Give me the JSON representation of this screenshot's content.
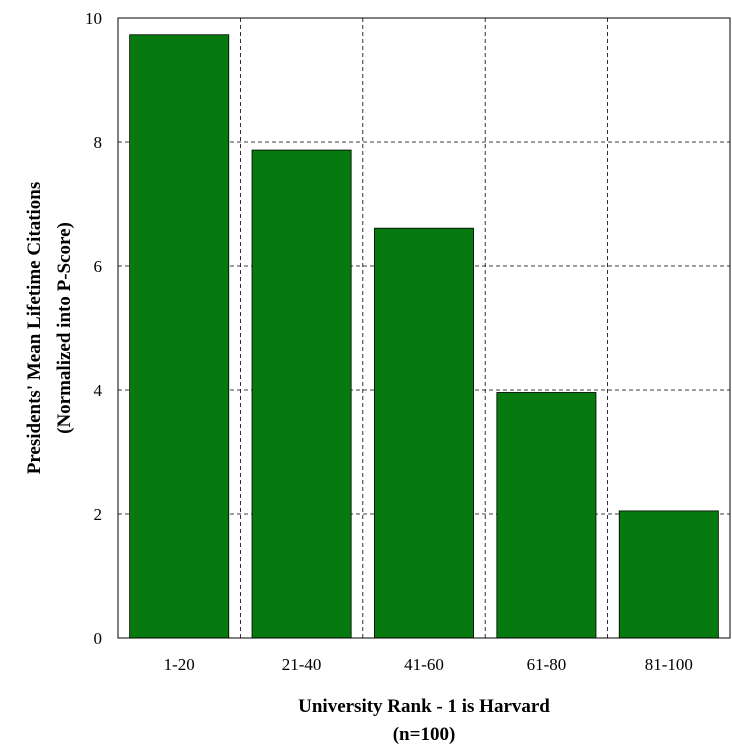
{
  "chart_data": {
    "type": "bar",
    "categories": [
      "1-20",
      "21-40",
      "41-60",
      "61-80",
      "81-100"
    ],
    "values": [
      9.73,
      7.87,
      6.61,
      3.96,
      2.05
    ],
    "xlabel_lines": [
      "University Rank - 1 is Harvard",
      "(n=100)"
    ],
    "ylabel_lines": [
      "Presidents' Mean Lifetime Citations",
      "(Normalized into P-Score)"
    ],
    "ylim": [
      0,
      10
    ],
    "yticks": [
      0,
      2,
      4,
      6,
      8,
      10
    ],
    "grid": true,
    "bar_color": "#077a0f"
  }
}
